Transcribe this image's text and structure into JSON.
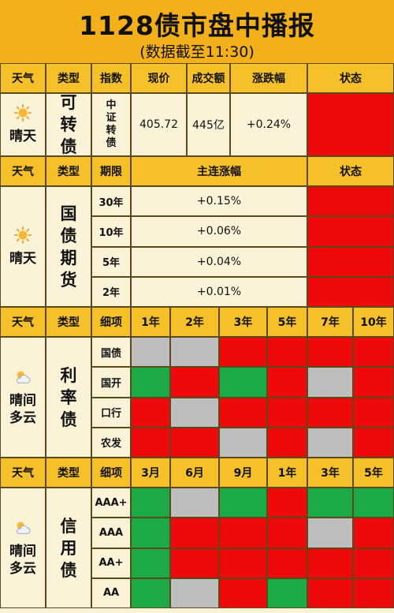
{
  "title": "1128债市盘中播报",
  "subtitle": "(数据截至11:30)",
  "colors": {
    "red": "#ee0a0a",
    "green": "#1caa46",
    "gray": "#bebebe",
    "header": "#f5c02a",
    "title_bar": "#f4b01b",
    "background": "#fbf3d7"
  },
  "s1": {
    "headers": [
      "天气",
      "类型",
      "指数",
      "现价",
      "成交额",
      "涨跌幅",
      "状态"
    ],
    "weather_icon": "sun-icon",
    "weather": "晴天",
    "type": "可转债",
    "index": "中证转债",
    "price": "405.72",
    "volume": "445亿",
    "change": "+0.24%",
    "status": "red"
  },
  "s2": {
    "headers": [
      "天气",
      "类型",
      "期限",
      "主连涨幅",
      "状态"
    ],
    "weather_icon": "sun-icon",
    "weather": "晴天",
    "type": "国债期货",
    "rows": [
      {
        "term": "30年",
        "change": "+0.15%",
        "status": "red"
      },
      {
        "term": "10年",
        "change": "+0.06%",
        "status": "red"
      },
      {
        "term": "5年",
        "change": "+0.04%",
        "status": "red"
      },
      {
        "term": "2年",
        "change": "+0.01%",
        "status": "red"
      }
    ]
  },
  "s3": {
    "headers": [
      "天气",
      "类型",
      "细项",
      "1年",
      "2年",
      "3年",
      "5年",
      "7年",
      "10年"
    ],
    "weather_icon": "partly-cloudy-icon",
    "weather": "晴间多云",
    "type": "利率债",
    "rows": [
      {
        "label": "国债",
        "cells": [
          "gray",
          "gray",
          "red",
          "red",
          "red",
          "red"
        ]
      },
      {
        "label": "国开",
        "cells": [
          "green",
          "red",
          "green",
          "red",
          "gray",
          "red"
        ]
      },
      {
        "label": "口行",
        "cells": [
          "red",
          "gray",
          "red",
          "red",
          "red",
          "red"
        ]
      },
      {
        "label": "农发",
        "cells": [
          "red",
          "red",
          "gray",
          "red",
          "gray",
          "red"
        ]
      }
    ]
  },
  "s4": {
    "headers": [
      "天气",
      "类型",
      "细项",
      "3月",
      "6月",
      "9月",
      "1年",
      "3年",
      "5年"
    ],
    "weather_icon": "partly-cloudy-icon",
    "weather": "晴间多云",
    "type": "信用债",
    "rows": [
      {
        "label": "AAA+",
        "cells": [
          "green",
          "gray",
          "green",
          "red",
          "green",
          "green"
        ]
      },
      {
        "label": "AAA",
        "cells": [
          "green",
          "red",
          "red",
          "red",
          "gray",
          "red"
        ]
      },
      {
        "label": "AA+",
        "cells": [
          "green",
          "red",
          "red",
          "red",
          "red",
          "red"
        ]
      },
      {
        "label": "AA",
        "cells": [
          "green",
          "gray",
          "red",
          "green",
          "red",
          "red"
        ]
      }
    ]
  }
}
